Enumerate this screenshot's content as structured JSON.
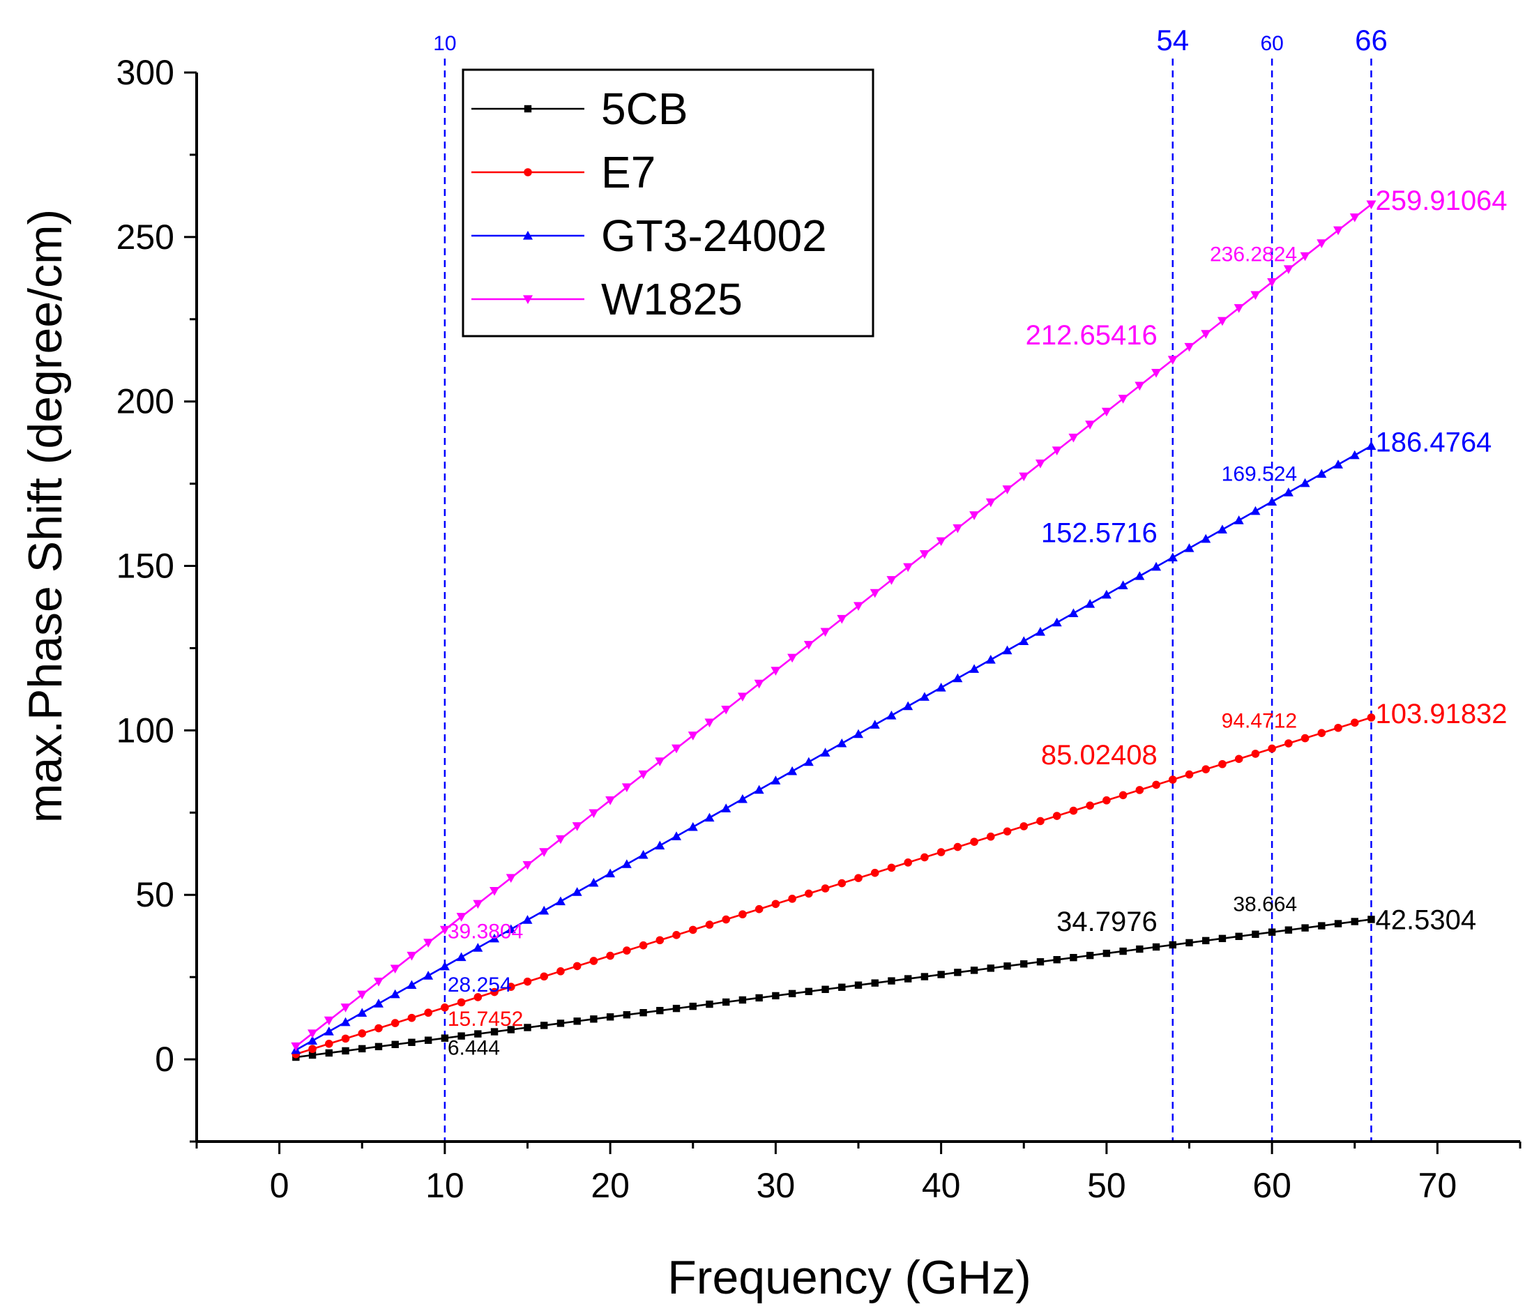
{
  "chart_data": {
    "type": "line",
    "title": "",
    "xlabel": "Frequency (GHz)",
    "ylabel": "max.Phase Shift (degree/cm)",
    "xlim": [
      -5,
      75
    ],
    "ylim": [
      -25,
      300
    ],
    "x_ticks": [
      0,
      10,
      20,
      30,
      40,
      50,
      60,
      70
    ],
    "y_ticks": [
      0,
      50,
      100,
      150,
      200,
      250,
      300
    ],
    "x_tick_labels": [
      "0",
      "10",
      "20",
      "30",
      "40",
      "50",
      "60",
      "70"
    ],
    "y_tick_labels": [
      "0",
      "50",
      "100",
      "150",
      "200",
      "250",
      "300"
    ],
    "grid": false,
    "legend_position": "top-left",
    "x_range": [
      1,
      66
    ],
    "x_step": 1,
    "series": [
      {
        "name": "5CB",
        "color": "#000000",
        "marker": "square",
        "slope": 0.6444
      },
      {
        "name": "E7",
        "color": "#ff0000",
        "marker": "circle",
        "slope": 1.57452
      },
      {
        "name": "GT3-24002",
        "color": "#0000ff",
        "marker": "triangle-up",
        "slope": 2.8254
      },
      {
        "name": "W1825",
        "color": "#ff00ff",
        "marker": "triangle-down",
        "slope": 3.93804
      }
    ],
    "reference_lines": [
      {
        "x": 10,
        "label": "10",
        "color": "#0000ff"
      },
      {
        "x": 54,
        "label": "54",
        "color": "#0000ff"
      },
      {
        "x": 60,
        "label": "60",
        "color": "#0000ff"
      },
      {
        "x": 66,
        "label": "66",
        "color": "#0000ff"
      }
    ],
    "annotations": [
      {
        "series": "5CB",
        "x": 10,
        "y": 6.444,
        "text": "6.444",
        "color": "#000000"
      },
      {
        "series": "5CB",
        "x": 54,
        "y": 34.7976,
        "text": "34.7976",
        "color": "#000000"
      },
      {
        "series": "5CB",
        "x": 60,
        "y": 38.664,
        "text": "38.664",
        "color": "#000000"
      },
      {
        "series": "5CB",
        "x": 66,
        "y": 42.5304,
        "text": "42.5304",
        "color": "#000000"
      },
      {
        "series": "E7",
        "x": 10,
        "y": 15.7452,
        "text": "15.7452",
        "color": "#ff0000"
      },
      {
        "series": "E7",
        "x": 54,
        "y": 85.02408,
        "text": "85.02408",
        "color": "#ff0000"
      },
      {
        "series": "E7",
        "x": 60,
        "y": 94.4712,
        "text": "94.4712",
        "color": "#ff0000"
      },
      {
        "series": "E7",
        "x": 66,
        "y": 103.91832,
        "text": "103.91832",
        "color": "#ff0000"
      },
      {
        "series": "GT3-24002",
        "x": 10,
        "y": 28.254,
        "text": "28.254",
        "color": "#0000ff"
      },
      {
        "series": "GT3-24002",
        "x": 54,
        "y": 152.5716,
        "text": "152.5716",
        "color": "#0000ff"
      },
      {
        "series": "GT3-24002",
        "x": 60,
        "y": 169.524,
        "text": "169.524",
        "color": "#0000ff"
      },
      {
        "series": "GT3-24002",
        "x": 66,
        "y": 186.4764,
        "text": "186.4764",
        "color": "#0000ff"
      },
      {
        "series": "W1825",
        "x": 10,
        "y": 39.3804,
        "text": "39.3804",
        "color": "#ff00ff"
      },
      {
        "series": "W1825",
        "x": 54,
        "y": 212.65416,
        "text": "212.65416",
        "color": "#ff00ff"
      },
      {
        "series": "W1825",
        "x": 60,
        "y": 236.2824,
        "text": "236.2824",
        "color": "#ff00ff"
      },
      {
        "series": "W1825",
        "x": 66,
        "y": 259.91064,
        "text": "259.91064",
        "color": "#ff00ff"
      }
    ]
  }
}
